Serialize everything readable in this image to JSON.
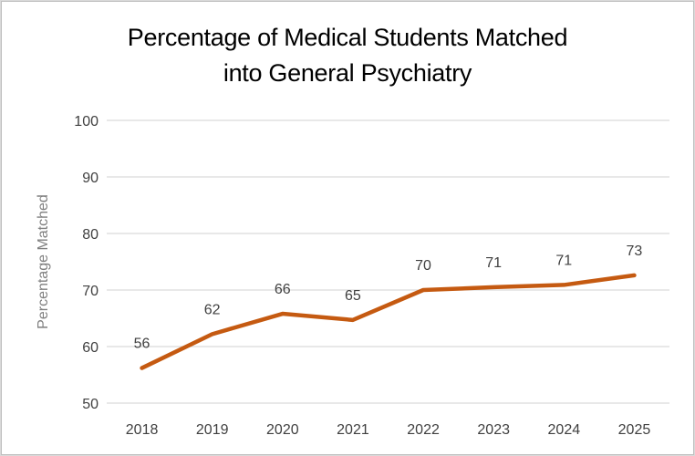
{
  "chart_data": {
    "type": "line",
    "title_lines": [
      "Percentage of Medical Students Matched",
      "into General Psychiatry"
    ],
    "title": "Percentage of Medical Students Matched into General Psychiatry",
    "xlabel": "",
    "ylabel": "Percentage Matched",
    "categories": [
      "2018",
      "2019",
      "2020",
      "2021",
      "2022",
      "2023",
      "2024",
      "2025"
    ],
    "series": [
      {
        "name": "Percentage Matched",
        "values": [
          56.2,
          62.2,
          65.8,
          64.7,
          70.0,
          70.5,
          70.9,
          72.6
        ],
        "data_labels": [
          "56",
          "62",
          "66",
          "65",
          "70",
          "71",
          "71",
          "73"
        ],
        "color": "#c55a11"
      }
    ],
    "ylim": [
      50,
      100
    ],
    "yticks": [
      50,
      60,
      70,
      80,
      90,
      100
    ],
    "ytick_labels": [
      "50",
      "60",
      "70",
      "80",
      "90",
      "100"
    ],
    "grid": true,
    "legend": "none"
  }
}
